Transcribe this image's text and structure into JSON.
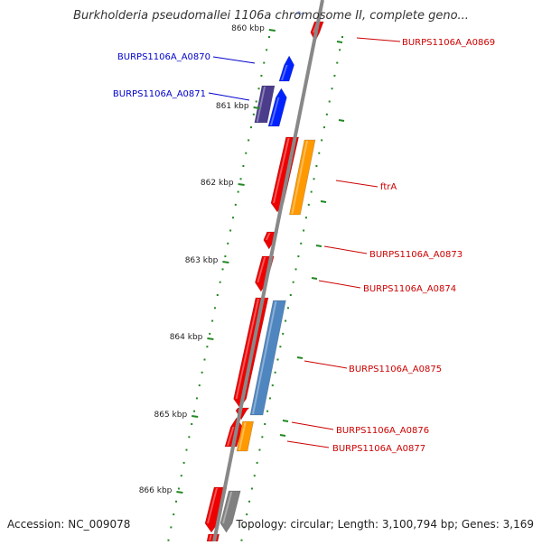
{
  "title": "Burkholderia pseudomallei 1106a chromosome II, complete geno...",
  "footer": {
    "accession": "Accession: NC_009078",
    "summary": "Topology: circular; Length: 3,100,794 bp; Genes: 3,169"
  },
  "ticks": [
    "860 kbp",
    "861 kbp",
    "862 kbp",
    "863 kbp",
    "864 kbp",
    "865 kbp",
    "866 kbp"
  ],
  "gene_labels": [
    {
      "id": "burps1106a-a0869",
      "text": "BURPS1106A_A0869",
      "color": "#cc0000"
    },
    {
      "id": "burps1106a-a0870",
      "text": "BURPS1106A_A0870",
      "color": "#0000cc"
    },
    {
      "id": "burps1106a-a0871",
      "text": "BURPS1106A_A0871",
      "color": "#0000cc"
    },
    {
      "id": "ftra",
      "text": "ftrA",
      "color": "#cc0000"
    },
    {
      "id": "burps1106a-a0873",
      "text": "BURPS1106A_A0873",
      "color": "#cc0000"
    },
    {
      "id": "burps1106a-a0874",
      "text": "BURPS1106A_A0874",
      "color": "#cc0000"
    },
    {
      "id": "burps1106a-a0875",
      "text": "BURPS1106A_A0875",
      "color": "#cc0000"
    },
    {
      "id": "burps1106a-a0876",
      "text": "BURPS1106A_A0876",
      "color": "#cc0000"
    },
    {
      "id": "burps1106a-a0877",
      "text": "BURPS1106A_A0877",
      "color": "#cc0000"
    }
  ],
  "colors": {
    "backbone": "#888888",
    "tick": "#228822",
    "red_gene": "#ee0000",
    "blue_gene": "#0022ff",
    "indigo_gene": "#4b3c8c",
    "orange_gene": "#ff9900",
    "steelblue_gene": "#4f86c0",
    "grey_gene": "#808080"
  }
}
